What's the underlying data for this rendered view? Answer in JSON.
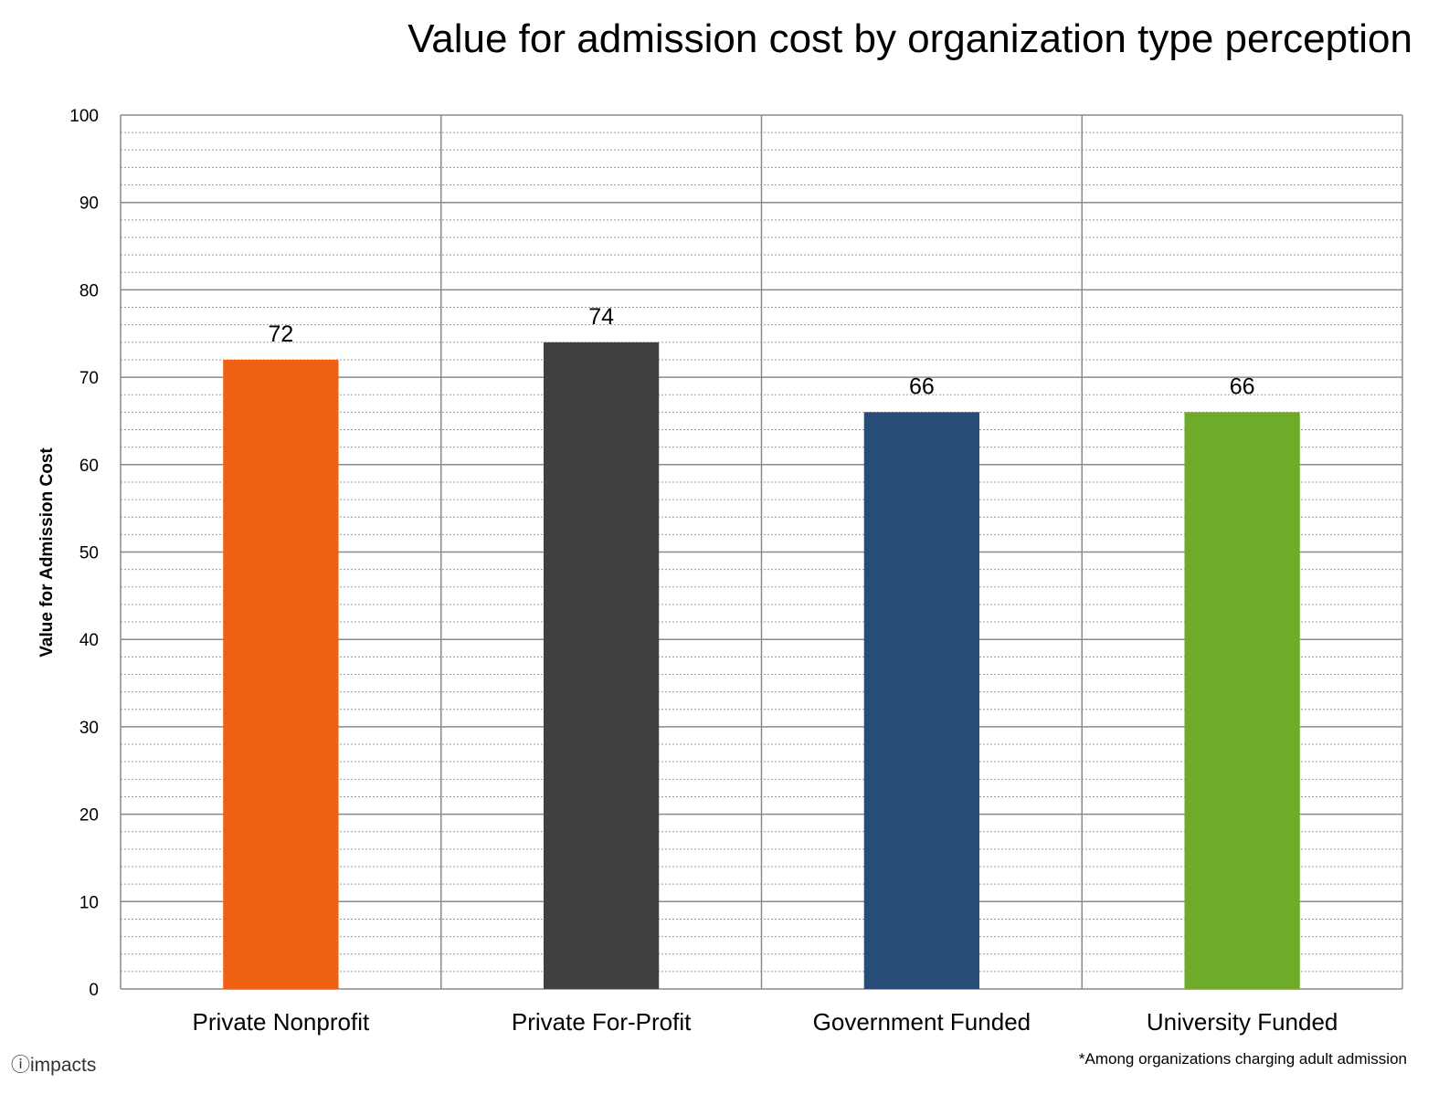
{
  "chart_data": {
    "type": "bar",
    "title": "Value for admission cost by organization type perception",
    "ylabel": "Value for Admission Cost",
    "xlabel": "",
    "categories": [
      "Private Nonprofit",
      "Private For-Profit",
      "Government Funded",
      "University Funded"
    ],
    "values": [
      72,
      74,
      66,
      66
    ],
    "data_labels": [
      "72",
      "74",
      "66",
      "66"
    ],
    "colors": [
      "#EE6113",
      "#404040",
      "#264C77",
      "#6DAB28"
    ],
    "ylim": [
      0,
      100
    ],
    "yticks": [
      "0",
      "10",
      "20",
      "30",
      "40",
      "50",
      "60",
      "70",
      "80",
      "90",
      "100"
    ],
    "grid": true,
    "minor_gridlines": "dotted"
  },
  "logo": {
    "text": "impacts"
  },
  "footnote": "*Among organizations charging adult admission"
}
